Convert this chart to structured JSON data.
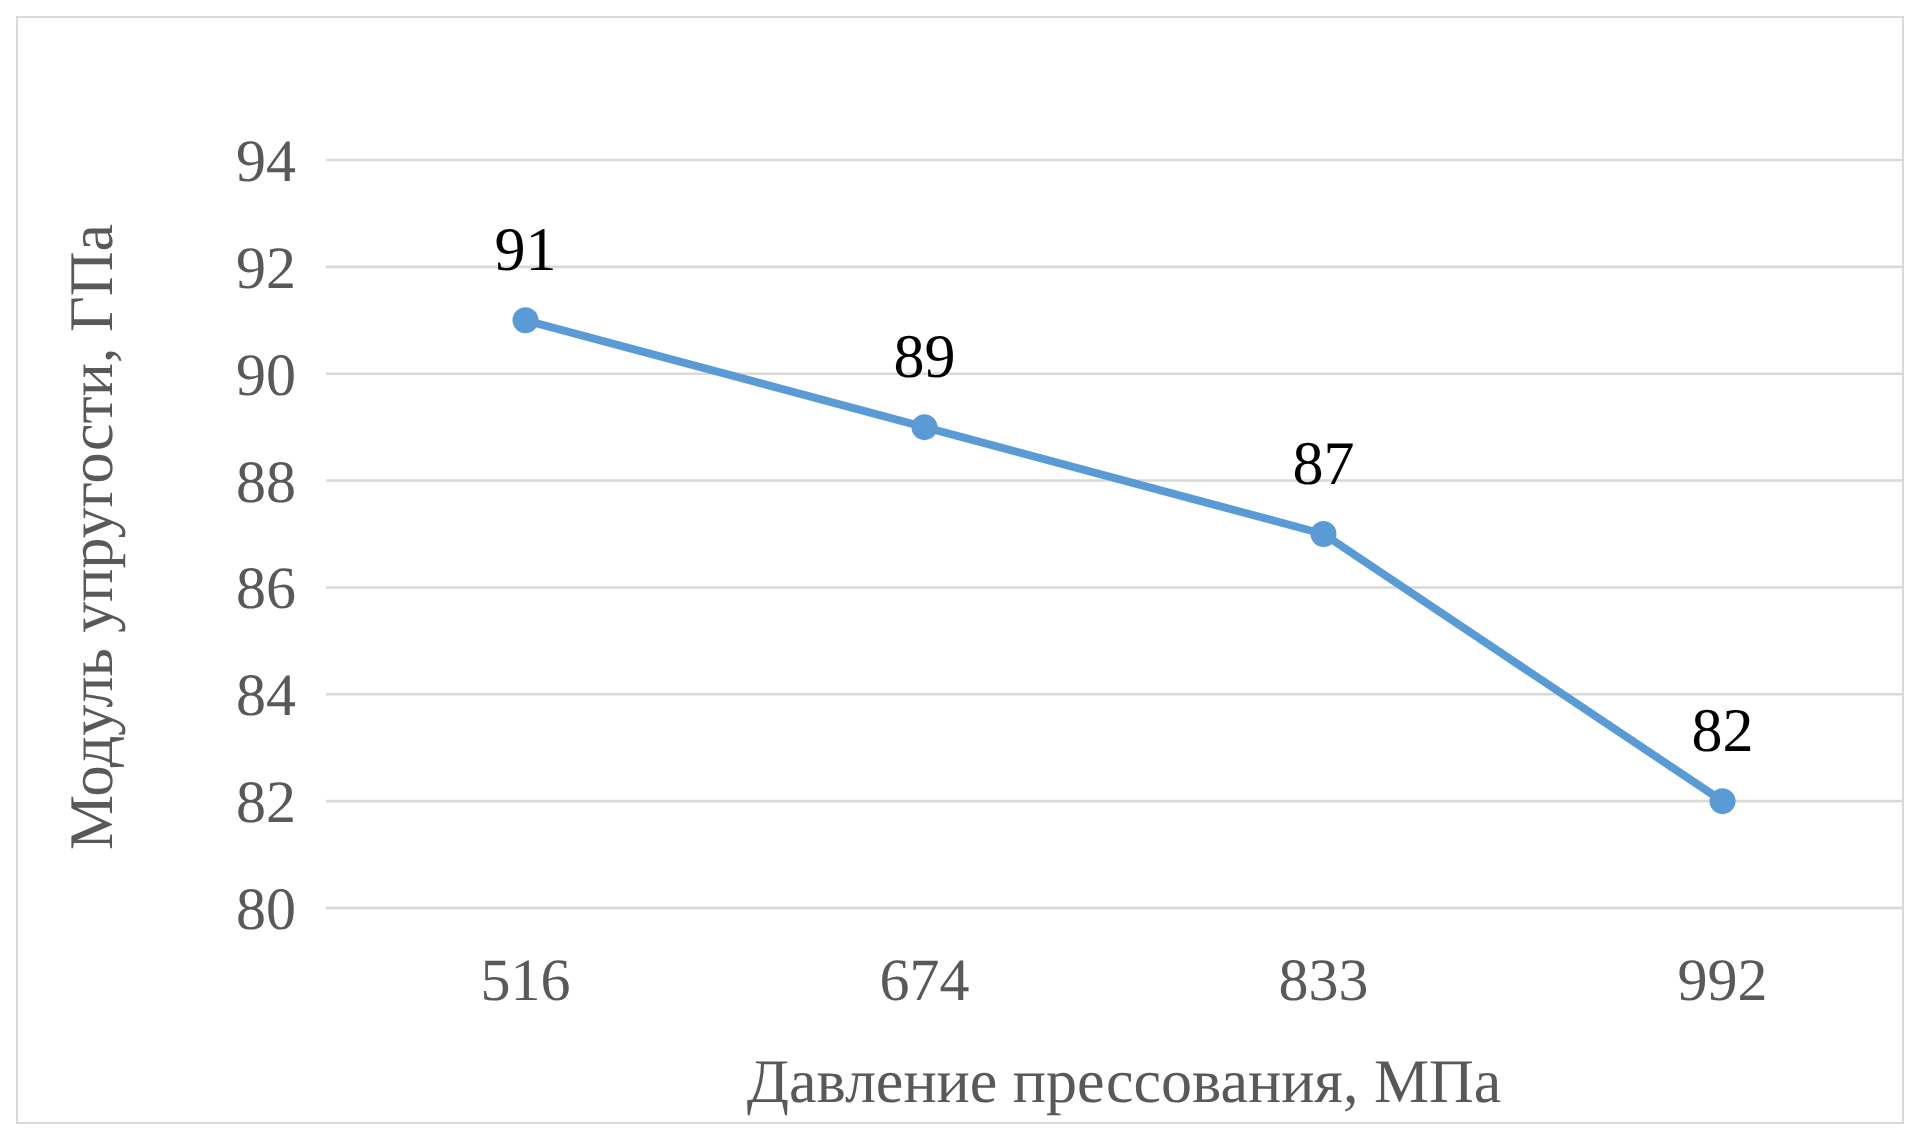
{
  "chart_data": {
    "type": "line",
    "xlabel": "Давление прессования, МПа",
    "ylabel": "Модуль упругости, ГПа",
    "categories": [
      "516",
      "674",
      "833",
      "992"
    ],
    "series": [
      {
        "color": "#5b9bd5",
        "values": [
          91,
          89,
          87,
          82
        ]
      }
    ],
    "ylim": [
      80,
      94
    ],
    "yticks": [
      80,
      82,
      84,
      86,
      88,
      90,
      92,
      94
    ],
    "grid": "y",
    "marker": "circle",
    "data_labels": true
  }
}
